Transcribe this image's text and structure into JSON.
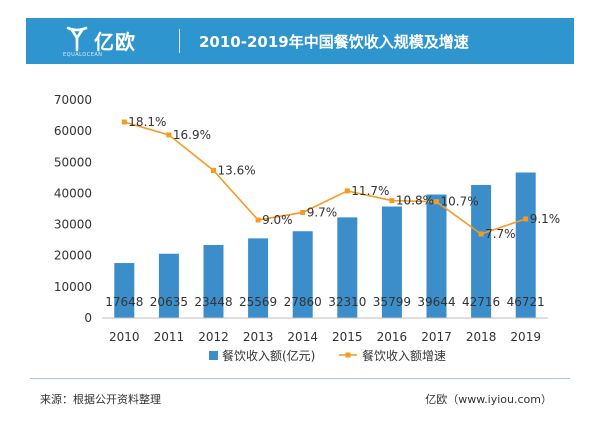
{
  "header": {
    "brand": "亿欧",
    "brand_sub": "EQUALOCEAN",
    "title": "2010-2019年中国餐饮收入规模及增速"
  },
  "footer": {
    "source": "来源：根据公开资料整理",
    "brand_url": "亿欧（www.iyiou.com）"
  },
  "colors": {
    "header": "#2f95cf",
    "bar": "#3c8ecb",
    "line": "#f59a23"
  },
  "chart_data": {
    "type": "bar+line",
    "categories": [
      "2010",
      "2011",
      "2012",
      "2013",
      "2014",
      "2015",
      "2016",
      "2017",
      "2018",
      "2019"
    ],
    "ylim": [
      0,
      70000
    ],
    "yticks": [
      0,
      10000,
      20000,
      30000,
      40000,
      50000,
      60000,
      70000
    ],
    "grid": false,
    "legend_position": "bottom",
    "series": [
      {
        "name": "餐饮收入额(亿元)",
        "type": "bar",
        "values": [
          17648,
          20635,
          23448,
          25569,
          27860,
          32310,
          35799,
          39644,
          42716,
          46721
        ],
        "labels": [
          "17648",
          "20635",
          "23448",
          "25569",
          "27860",
          "32310",
          "35799",
          "39644",
          "42716",
          "46721"
        ]
      },
      {
        "name": "餐饮收入额增速",
        "type": "line",
        "values": [
          18.1,
          16.9,
          13.6,
          9.0,
          9.7,
          11.7,
          10.8,
          10.7,
          7.7,
          9.1
        ],
        "labels": [
          "18.1%",
          "16.9%",
          "13.6%",
          "9.0%",
          "9.7%",
          "11.7%",
          "10.8%",
          "10.7%",
          "7.7%",
          "9.1%"
        ]
      }
    ]
  }
}
